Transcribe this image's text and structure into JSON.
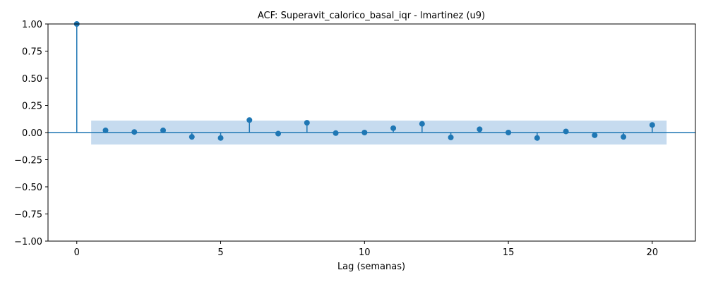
{
  "chart_data": {
    "type": "scatter",
    "title": "ACF: Superavit_calorico_basal_iqr - lmartinez (u9)",
    "xlabel": "Lag (semanas)",
    "ylabel": "",
    "xlim": [
      -1,
      21.5
    ],
    "ylim": [
      -1.0,
      1.0
    ],
    "x_ticks": [
      0,
      5,
      10,
      15,
      20
    ],
    "y_ticks": [
      -1.0,
      -0.75,
      -0.5,
      -0.25,
      0.0,
      0.25,
      0.5,
      0.75,
      1.0
    ],
    "x_tick_labels": [
      "0",
      "5",
      "10",
      "15",
      "20"
    ],
    "y_tick_labels": [
      "−1.00",
      "−0.75",
      "−0.50",
      "−0.25",
      "0.00",
      "0.25",
      "0.50",
      "0.75",
      "1.00"
    ],
    "grid": false,
    "series": [
      {
        "lags": [
          0,
          1,
          2,
          3,
          4,
          5,
          6,
          7,
          8,
          9,
          10,
          11,
          12,
          13,
          14,
          15,
          16,
          17,
          18,
          19,
          20
        ],
        "values": [
          1.0,
          0.02,
          0.005,
          0.02,
          -0.04,
          -0.05,
          0.115,
          -0.01,
          0.09,
          -0.005,
          0.0,
          0.04,
          0.08,
          -0.045,
          0.03,
          0.0,
          -0.05,
          0.01,
          -0.025,
          -0.04,
          0.07
        ]
      }
    ],
    "confidence_band": {
      "x_range": [
        0.5,
        20.5
      ],
      "upper": 0.11,
      "lower": -0.11
    },
    "colors": {
      "marker": "#1f77b4",
      "band": "#c6dbef"
    }
  }
}
